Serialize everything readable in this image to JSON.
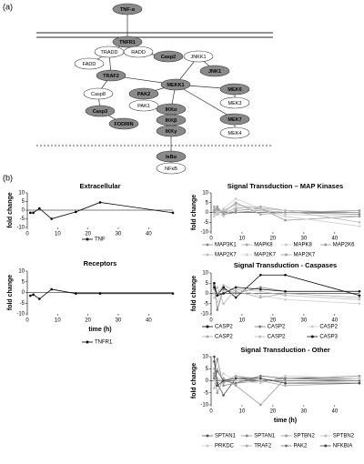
{
  "panel_labels": [
    "(a)",
    "(b)"
  ],
  "diagram": {
    "nodes": [
      {
        "label": "TNF-α",
        "shade": "dark"
      },
      {
        "label": "TNFR1",
        "shade": "dark"
      },
      {
        "label": "TRADD",
        "shade": "light"
      },
      {
        "label": "RADD",
        "shade": "light"
      },
      {
        "label": "FADD",
        "shade": "light"
      },
      {
        "label": "Casp2",
        "shade": "dark"
      },
      {
        "label": "JNKK1",
        "shade": "light"
      },
      {
        "label": "JNK1",
        "shade": "dark"
      },
      {
        "label": "TRAF2",
        "shade": "dark"
      },
      {
        "label": "MEKK1",
        "shade": "dark"
      },
      {
        "label": "MEK6",
        "shade": "dark"
      },
      {
        "label": "MEK3",
        "shade": "light"
      },
      {
        "label": "Casp8",
        "shade": "light"
      },
      {
        "label": "PAK2",
        "shade": "dark"
      },
      {
        "label": "PAK1",
        "shade": "light"
      },
      {
        "label": "Casp3",
        "shade": "dark"
      },
      {
        "label": "FODRIN",
        "shade": "dark"
      },
      {
        "label": "IKKα",
        "shade": "dark"
      },
      {
        "label": "IKKβ",
        "shade": "dark"
      },
      {
        "label": "IKKγ",
        "shade": "dark"
      },
      {
        "label": "MEK7",
        "shade": "dark"
      },
      {
        "label": "MEK4",
        "shade": "light"
      },
      {
        "label": "IκBα",
        "shade": "dark"
      },
      {
        "label": "NFκB",
        "shade": "light"
      }
    ]
  },
  "chart_data": [
    {
      "type": "line",
      "title": "Extracellular",
      "y_label": "fold change",
      "x": [
        1,
        2,
        4,
        8,
        16,
        24,
        48
      ],
      "xlim": [
        0,
        48
      ],
      "xticks": [
        0,
        10,
        20,
        30,
        40
      ],
      "ylim": [
        -10,
        10
      ],
      "yticks": [
        -10,
        -5,
        0,
        5,
        10
      ],
      "series": [
        {
          "name": "TNF",
          "color": "#000000",
          "values": [
            -1.5,
            -1.5,
            1,
            -5,
            -1,
            4.5,
            -1.5
          ]
        }
      ]
    },
    {
      "type": "line",
      "title": "Receptors",
      "y_label": "fold change",
      "x_label": "time (h)",
      "x": [
        1,
        2,
        4,
        8,
        16,
        24,
        48
      ],
      "xlim": [
        0,
        48
      ],
      "xticks": [
        0,
        10,
        20,
        30,
        40
      ],
      "ylim": [
        -10,
        10
      ],
      "yticks": [
        -10,
        -5,
        0,
        5,
        10
      ],
      "series": [
        {
          "name": "TNFR1",
          "color": "#000000",
          "values": [
            -1.5,
            -1,
            -3,
            1.5,
            -0.5,
            -0.5,
            -0.5
          ]
        }
      ]
    },
    {
      "type": "line",
      "title": "Signal Transduction – MAP Kinases",
      "y_label": "fold change",
      "x": [
        1,
        2,
        4,
        8,
        16,
        24,
        48
      ],
      "xlim": [
        0,
        48
      ],
      "xticks": [
        0,
        10,
        20,
        30,
        40
      ],
      "ylim": [
        -10,
        10
      ],
      "yticks": [
        -10,
        -5,
        0,
        5,
        10
      ],
      "series": [
        {
          "name": "MAP3K1",
          "color": "#888888",
          "values": [
            1,
            2,
            -1,
            0,
            1,
            0,
            -1
          ]
        },
        {
          "name": "MAPK8",
          "color": "#aaaaaa",
          "values": [
            3,
            1,
            0,
            2,
            3,
            1,
            0
          ]
        },
        {
          "name": "MAPK8",
          "color": "#cccccc",
          "values": [
            -2,
            -1,
            2,
            7,
            2,
            -1,
            -2
          ]
        },
        {
          "name": "MAP2K6",
          "color": "#999999",
          "values": [
            0,
            3,
            -1,
            1,
            2,
            -4,
            -2
          ]
        },
        {
          "name": "MAP2K7",
          "color": "#bbbbbb",
          "values": [
            2,
            -1,
            1,
            4,
            2,
            1,
            -5
          ]
        },
        {
          "name": "MAP2K7",
          "color": "#d0d0d0",
          "values": [
            -1,
            0,
            -2,
            3,
            1,
            -2,
            -7
          ]
        },
        {
          "name": "MAP2K7",
          "color": "#a0a0a0",
          "values": [
            1,
            2,
            0,
            5,
            -1,
            0,
            1
          ]
        }
      ]
    },
    {
      "type": "line",
      "title": "Signal Transduction - Caspases",
      "y_label": "fold change",
      "x": [
        1,
        2,
        4,
        8,
        16,
        24,
        48
      ],
      "xlim": [
        0,
        48
      ],
      "xticks": [
        0,
        10,
        20,
        30,
        40
      ],
      "ylim": [
        -10,
        10
      ],
      "yticks": [
        -10,
        -5,
        0,
        5,
        10
      ],
      "series": [
        {
          "name": "CASP2",
          "color": "#000000",
          "values": [
            5,
            -1,
            3,
            -2,
            9,
            9,
            -1
          ]
        },
        {
          "name": "CASP2",
          "color": "#777777",
          "values": [
            4,
            -8,
            2,
            0,
            3,
            1,
            1
          ]
        },
        {
          "name": "CASP2",
          "color": "#cccccc",
          "values": [
            -2,
            -4,
            1,
            2,
            -1,
            -3,
            -5
          ]
        },
        {
          "name": "CASP2",
          "color": "#aaaaaa",
          "values": [
            2,
            0,
            4,
            1,
            -2,
            0,
            -2
          ]
        },
        {
          "name": "CASP2",
          "color": "#bbbbbb",
          "values": [
            0,
            3,
            -5,
            2,
            1,
            -1,
            -3
          ]
        },
        {
          "name": "CASP3",
          "color": "#111111",
          "values": [
            3,
            -1,
            0,
            3,
            2,
            1,
            1
          ]
        }
      ]
    },
    {
      "type": "line",
      "title": "Signal Transduction - Other",
      "y_label": "fold change",
      "x_label": "time (h)",
      "x": [
        1,
        2,
        4,
        8,
        16,
        24,
        48
      ],
      "xlim": [
        0,
        48
      ],
      "xticks": [
        0,
        10,
        20,
        30,
        40
      ],
      "ylim": [
        -10,
        10
      ],
      "yticks": [
        -10,
        -5,
        0,
        5,
        10
      ],
      "series": [
        {
          "name": "SPTAN1",
          "color": "#555555",
          "values": [
            8,
            -1,
            -6,
            1,
            0,
            1,
            1
          ]
        },
        {
          "name": "SPTAN1",
          "color": "#888888",
          "values": [
            3,
            9,
            -2,
            -1,
            0,
            0,
            0
          ]
        },
        {
          "name": "SPTBN2",
          "color": "#999999",
          "values": [
            2,
            -5,
            1,
            -2,
            -10,
            1,
            2
          ]
        },
        {
          "name": "SPTBN2",
          "color": "#bbbbbb",
          "values": [
            -3,
            5,
            0,
            2,
            1,
            -1,
            0
          ]
        },
        {
          "name": "PRKDC",
          "color": "#cccccc",
          "values": [
            0,
            -2,
            3,
            0,
            -1,
            2,
            1
          ]
        },
        {
          "name": "TRAF2",
          "color": "#aaaaaa",
          "values": [
            5,
            1,
            -1,
            2,
            0,
            -2,
            -1
          ]
        },
        {
          "name": "PAK2",
          "color": "#777777",
          "values": [
            1,
            4,
            0,
            -1,
            2,
            1,
            0
          ]
        },
        {
          "name": "NFKBIA",
          "color": "#444444",
          "values": [
            10,
            -2,
            0,
            1,
            1,
            -1,
            -1
          ]
        }
      ]
    }
  ]
}
